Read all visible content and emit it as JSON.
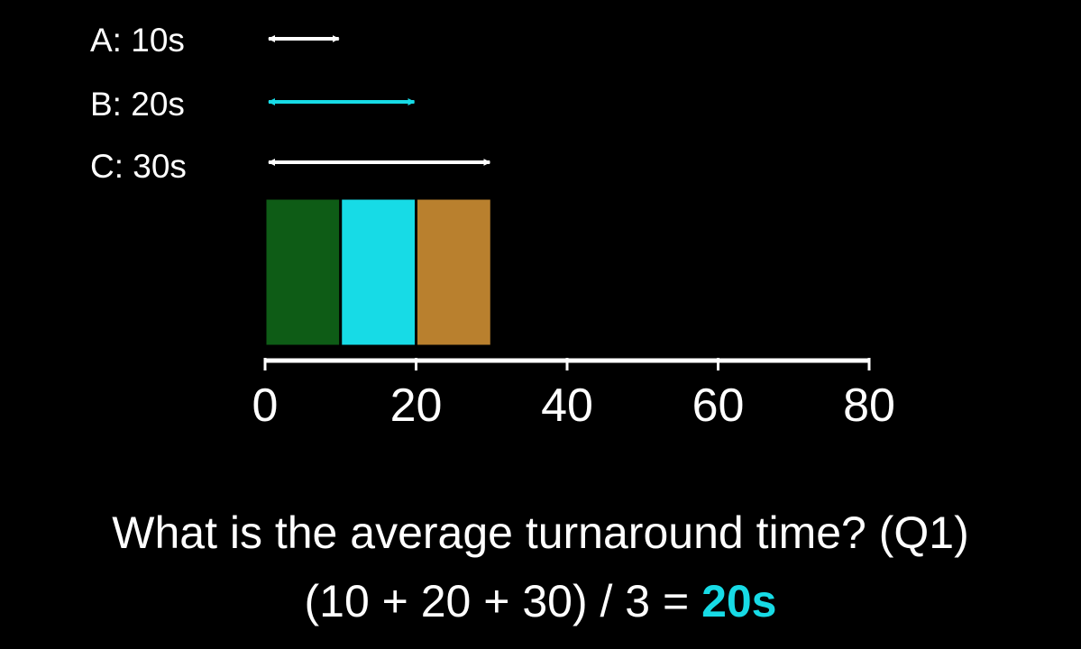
{
  "jobs": [
    {
      "label": "A: 10s",
      "duration": 10,
      "arrow_color": "#ffffff",
      "block_color": "#0e5c16"
    },
    {
      "label": "B: 20s",
      "duration": 20,
      "arrow_color": "#17dbe6",
      "block_color": "#17dbe6"
    },
    {
      "label": "C: 30s",
      "duration": 30,
      "arrow_color": "#ffffff",
      "block_color": "#b9802e"
    }
  ],
  "schedule": [
    {
      "job": "A",
      "start": 0,
      "end": 10
    },
    {
      "job": "B",
      "start": 10,
      "end": 20
    },
    {
      "job": "C",
      "start": 20,
      "end": 30
    }
  ],
  "axis": {
    "ticks": [
      "0",
      "20",
      "40",
      "60",
      "80"
    ],
    "range": [
      0,
      80
    ]
  },
  "question": "What is the average turnaround time? (Q1)",
  "formula": "(10 + 20 + 30) / 3 = ",
  "answer": "20s",
  "accent_color": "#17dbe6"
}
